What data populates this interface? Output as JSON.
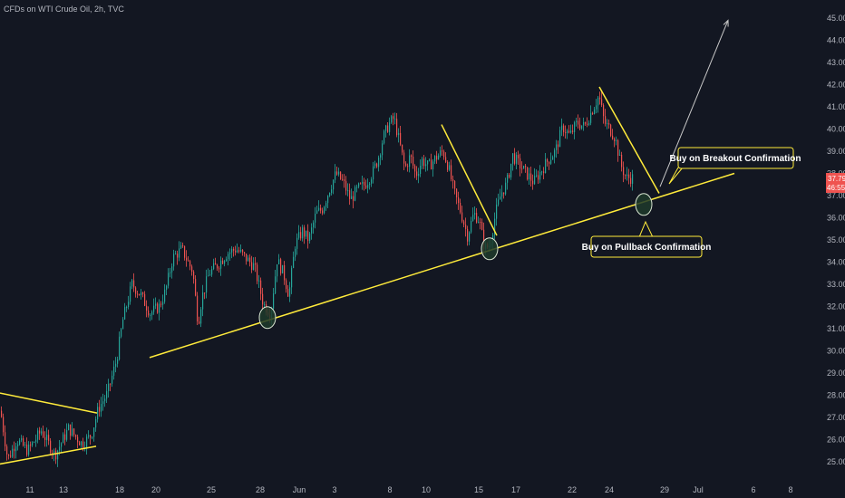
{
  "header": {
    "symbol_title": "CFDs on WTI Crude Oil, 2h, TVC"
  },
  "colors": {
    "background": "#131722",
    "up": "#26a69a",
    "down": "#ef5350",
    "trendline": "#ffeb3b",
    "axis_text": "#b2b5be",
    "arrow": "#c8c8c8",
    "circle_fill": "#1e3a2a",
    "circle_stroke": "#d7e4d0",
    "price_badge": "#ef5350"
  },
  "price_axis": {
    "ticks": [
      "45.00",
      "44.00",
      "43.00",
      "42.00",
      "41.00",
      "40.00",
      "39.00",
      "38.00",
      "37.00",
      "36.00",
      "35.00",
      "34.00",
      "33.00",
      "32.00",
      "31.00",
      "30.00",
      "29.00",
      "28.00",
      "27.00",
      "26.00",
      "25.00"
    ],
    "current_price": "37.79",
    "countdown": "46:55"
  },
  "time_axis": {
    "ticks": [
      "11",
      "13",
      "18",
      "20",
      "25",
      "28",
      "Jun",
      "3",
      "8",
      "10",
      "15",
      "17",
      "22",
      "24",
      "29",
      "Jul",
      "6",
      "8"
    ]
  },
  "annotations": {
    "breakout_label": "Buy on Breakout Confirmation",
    "pullback_label": "Buy on Pullback Confirmation"
  },
  "chart_data": {
    "type": "candlestick",
    "title": "CFDs on WTI Crude Oil, 2h, TVC",
    "ylim": [
      24.5,
      45.5
    ],
    "close_path": [
      [
        0,
        27.3
      ],
      [
        8,
        25.1
      ],
      [
        18,
        26.0
      ],
      [
        30,
        25.5
      ],
      [
        45,
        26.4
      ],
      [
        60,
        25.3
      ],
      [
        75,
        26.5
      ],
      [
        90,
        25.8
      ],
      [
        100,
        26.2
      ],
      [
        108,
        27.4
      ],
      [
        118,
        28.1
      ],
      [
        128,
        29.6
      ],
      [
        135,
        31.4
      ],
      [
        145,
        33.0
      ],
      [
        155,
        32.5
      ],
      [
        165,
        31.7
      ],
      [
        175,
        32.0
      ],
      [
        182,
        32.7
      ],
      [
        190,
        34.2
      ],
      [
        200,
        34.6
      ],
      [
        208,
        33.9
      ],
      [
        212,
        33.6
      ],
      [
        218,
        31.2
      ],
      [
        222,
        32.4
      ],
      [
        230,
        33.5
      ],
      [
        240,
        33.9
      ],
      [
        250,
        34.4
      ],
      [
        260,
        34.6
      ],
      [
        270,
        34.2
      ],
      [
        280,
        33.8
      ],
      [
        290,
        32.1
      ],
      [
        298,
        31.7
      ],
      [
        305,
        34.1
      ],
      [
        312,
        33.5
      ],
      [
        318,
        32.5
      ],
      [
        325,
        34.8
      ],
      [
        333,
        35.4
      ],
      [
        340,
        35.0
      ],
      [
        348,
        36.2
      ],
      [
        355,
        36.4
      ],
      [
        363,
        37.3
      ],
      [
        370,
        38.0
      ],
      [
        378,
        37.6
      ],
      [
        386,
        36.8
      ],
      [
        394,
        37.3
      ],
      [
        402,
        37.5
      ],
      [
        410,
        38.0
      ],
      [
        416,
        38.6
      ],
      [
        422,
        39.6
      ],
      [
        428,
        40.2
      ],
      [
        434,
        40.5
      ],
      [
        440,
        39.4
      ],
      [
        446,
        38.2
      ],
      [
        452,
        38.8
      ],
      [
        458,
        37.9
      ],
      [
        465,
        38.6
      ],
      [
        472,
        38.3
      ],
      [
        480,
        38.7
      ],
      [
        488,
        39.0
      ],
      [
        494,
        38.3
      ],
      [
        500,
        37.2
      ],
      [
        508,
        36.2
      ],
      [
        515,
        35.2
      ],
      [
        522,
        36.2
      ],
      [
        528,
        35.9
      ],
      [
        534,
        34.6
      ],
      [
        540,
        34.8
      ],
      [
        546,
        36.2
      ],
      [
        552,
        37.1
      ],
      [
        558,
        37.5
      ],
      [
        565,
        38.8
      ],
      [
        572,
        38.4
      ],
      [
        580,
        38.0
      ],
      [
        588,
        37.6
      ],
      [
        596,
        38.1
      ],
      [
        604,
        38.6
      ],
      [
        612,
        39.0
      ],
      [
        620,
        40.1
      ],
      [
        628,
        39.7
      ],
      [
        636,
        40.3
      ],
      [
        644,
        40.1
      ],
      [
        652,
        40.8
      ],
      [
        660,
        41.5
      ],
      [
        666,
        40.3
      ],
      [
        672,
        40.0
      ],
      [
        678,
        39.6
      ],
      [
        684,
        38.4
      ],
      [
        690,
        37.8
      ],
      [
        697,
        37.8
      ]
    ],
    "trendlines": [
      {
        "from": [
          0,
          28.1
        ],
        "to": [
          107,
          27.2
        ]
      },
      {
        "from": [
          0,
          24.9
        ],
        "to": [
          106,
          25.7
        ]
      },
      {
        "from": [
          165,
          29.7
        ],
        "to": [
          810,
          38.0
        ]
      },
      {
        "from": [
          487,
          40.2
        ],
        "to": [
          548,
          35.2
        ]
      },
      {
        "from": [
          661,
          41.9
        ],
        "to": [
          727,
          37.1
        ]
      }
    ],
    "highlight_circles": [
      {
        "x": 295,
        "price": 31.5
      },
      {
        "x": 540,
        "price": 34.6
      },
      {
        "x": 710,
        "price": 36.6
      }
    ],
    "projection_arrow": {
      "from": [
        728,
        37.4
      ],
      "to": [
        803,
        44.9
      ]
    }
  }
}
